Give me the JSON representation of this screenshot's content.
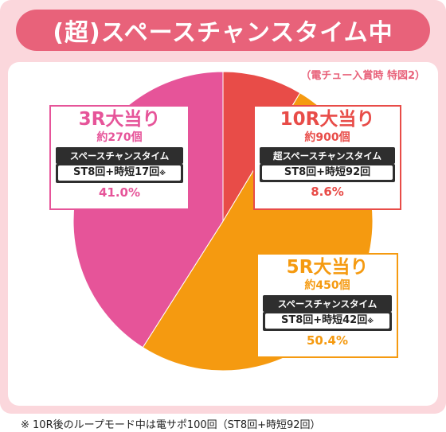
{
  "title": "(超)スペースチャンスタイム中",
  "subtitle": "（電チュー入賞時 特図2）",
  "chart_data": {
    "type": "pie",
    "colors": [
      "#e84c48",
      "#f59a10",
      "#e65499"
    ],
    "slices": [
      {
        "label": "10R大当り",
        "rounds_label": "約900個",
        "mode": "超スペースチャンスタイム",
        "st": "ST8回+時短92回",
        "percent_label": "8.6%",
        "value": 8.6
      },
      {
        "label": "5R大当り",
        "rounds_label": "約450個",
        "mode": "スペースチャンスタイム",
        "st": "ST8回+時短42回",
        "note_mark": "※",
        "percent_label": "50.4%",
        "value": 50.4
      },
      {
        "label": "3R大当り",
        "rounds_label": "約270個",
        "mode": "スペースチャンスタイム",
        "st": "ST8回+時短17回",
        "note_mark": "※",
        "percent_label": "41.0%",
        "value": 41.0
      }
    ]
  },
  "footnote": "※ 10R後のループモード中は電サポ100回（ST8回+時短92回）"
}
